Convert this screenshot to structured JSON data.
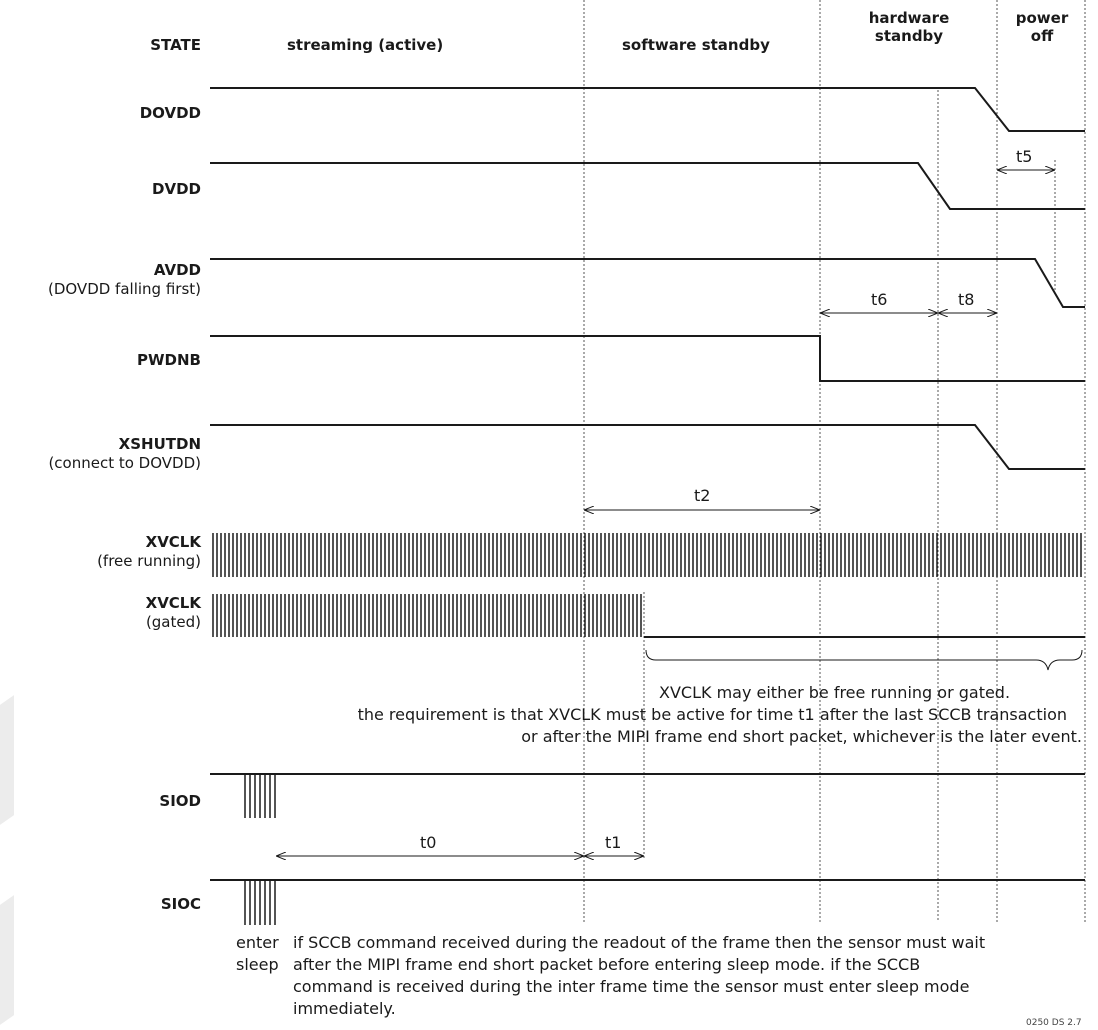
{
  "states": {
    "header": "STATE",
    "streaming": "streaming (active)",
    "software_standby": "software standby",
    "hardware_standby_l1": "hardware",
    "hardware_standby_l2": "standby",
    "power_off_l1": "power",
    "power_off_l2": "off"
  },
  "signals": {
    "dovdd": "DOVDD",
    "dvdd": "DVDD",
    "avdd": "AVDD",
    "avdd_note": "(DOVDD falling first)",
    "pwdnb": "PWDNB",
    "xshutdn": "XSHUTDN",
    "xshutdn_note": "(connect to DOVDD)",
    "xvclk_free": "XVCLK",
    "xvclk_free_note": "(free running)",
    "xvclk_gated": "XVCLK",
    "xvclk_gated_note": "(gated)",
    "siod": "SIOD",
    "sioc": "SIOC"
  },
  "timings": {
    "t0": "t0",
    "t1": "t1",
    "t2": "t2",
    "t5": "t5",
    "t6": "t6",
    "t8": "t8"
  },
  "notes": {
    "xvclk_l1": "XVCLK may either be free running or gated.",
    "xvclk_l2": "the requirement is that XVCLK must be active for time t1 after the last SCCB transaction",
    "xvclk_l3": "or after the MIPI frame end short packet, whichever is the later event.",
    "enter_sleep_l1": "enter",
    "enter_sleep_l2": "sleep",
    "sccb_l1": "if SCCB command received during the readout of the frame then the sensor must wait",
    "sccb_l2": "after the MIPI frame end short packet before entering sleep mode. if the SCCB",
    "sccb_l3": "command is received during the inter frame time the sensor must enter sleep mode",
    "sccb_l4": "immediately.",
    "figure_id": "0250 DS 2.7"
  },
  "colors": {
    "line": "#1a1a1a",
    "guide": "#555555"
  }
}
